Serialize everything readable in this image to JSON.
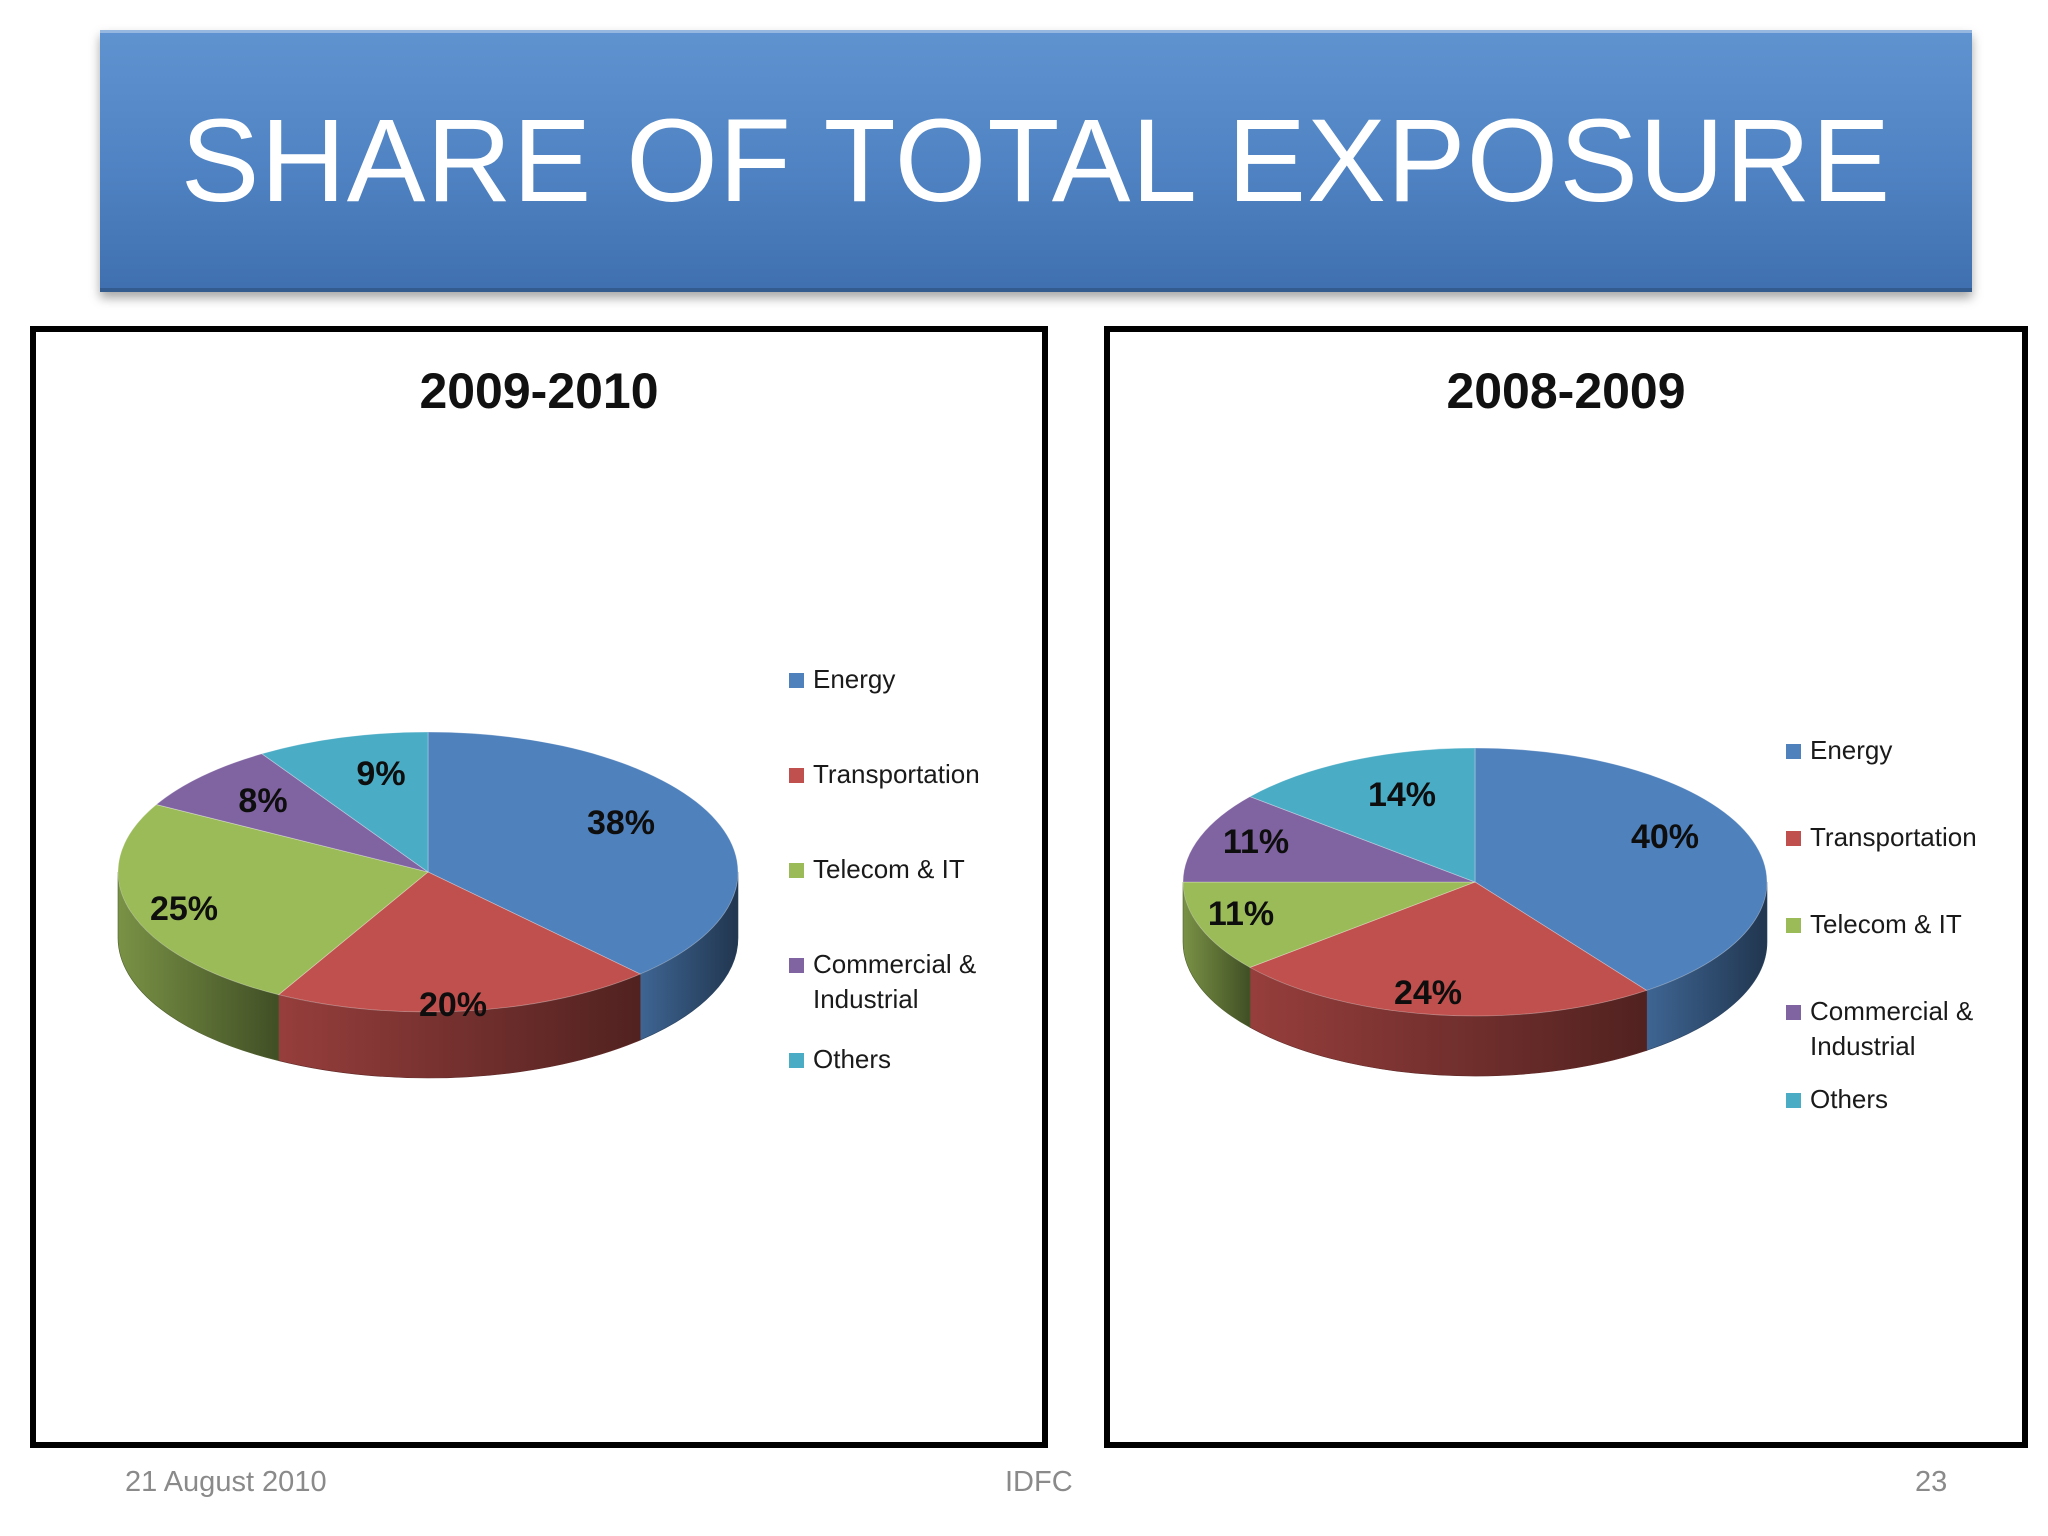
{
  "slide": {
    "title": "SHARE OF TOTAL EXPOSURE",
    "footer_date": "21 August 2010",
    "footer_org": "IDFC",
    "page_number": "23"
  },
  "chart_data": [
    {
      "type": "pie",
      "title": "2009-2010",
      "categories": [
        "Energy",
        "Transportation",
        "Telecom & IT",
        "Commercial & Industrial",
        "Others"
      ],
      "values": [
        38,
        20,
        25,
        8,
        9
      ],
      "labels": [
        "38%",
        "20%",
        "25%",
        "8%",
        "9%"
      ],
      "legend_labels": [
        [
          "Energy"
        ],
        [
          "Transportation"
        ],
        [
          "Telecom & IT"
        ],
        [
          "Commercial &",
          "Industrial"
        ],
        [
          "Others"
        ]
      ],
      "colors": [
        "#4f81bd",
        "#c0504d",
        "#9bbb59",
        "#8064a2",
        "#4bacc6"
      ],
      "legend_position": "right"
    },
    {
      "type": "pie",
      "title": "2008-2009",
      "categories": [
        "Energy",
        "Transportation",
        "Telecom & IT",
        "Commercial & Industrial",
        "Others"
      ],
      "values": [
        40,
        24,
        11,
        11,
        14
      ],
      "labels": [
        "40%",
        "24%",
        "11%",
        "11%",
        "14%"
      ],
      "legend_labels": [
        [
          "Energy"
        ],
        [
          "Transportation"
        ],
        [
          "Telecom & IT"
        ],
        [
          "Commercial &",
          "Industrial"
        ],
        [
          "Others"
        ]
      ],
      "colors": [
        "#4f81bd",
        "#c0504d",
        "#9bbb59",
        "#8064a2",
        "#4bacc6"
      ],
      "legend_position": "right"
    }
  ]
}
